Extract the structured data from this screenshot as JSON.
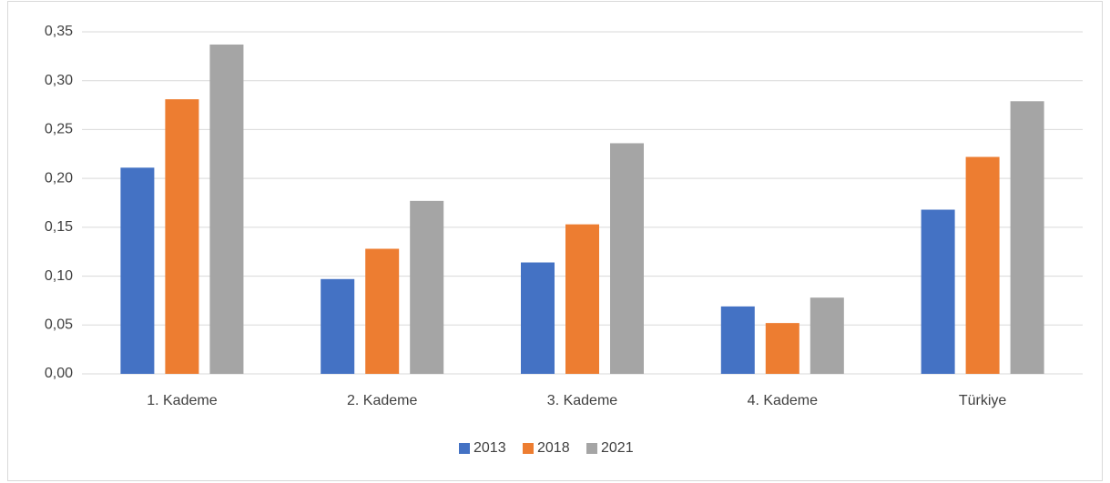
{
  "chart_data": {
    "type": "bar",
    "categories": [
      "1. Kademe",
      "2. Kademe",
      "3. Kademe",
      "4. Kademe",
      "Türkiye"
    ],
    "series": [
      {
        "name": "2013",
        "color": "#4472c4",
        "values": [
          0.211,
          0.097,
          0.114,
          0.069,
          0.168
        ]
      },
      {
        "name": "2018",
        "color": "#ed7d31",
        "values": [
          0.281,
          0.128,
          0.153,
          0.052,
          0.222
        ]
      },
      {
        "name": "2021",
        "color": "#a5a5a5",
        "values": [
          0.337,
          0.177,
          0.236,
          0.078,
          0.279
        ]
      }
    ],
    "ylim": [
      0,
      0.35
    ],
    "yticks": [
      {
        "value": 0,
        "label": "0,00"
      },
      {
        "value": 0.05,
        "label": "0,05"
      },
      {
        "value": 0.1,
        "label": "0,10"
      },
      {
        "value": 0.15,
        "label": "0,15"
      },
      {
        "value": 0.2,
        "label": "0,20"
      },
      {
        "value": 0.25,
        "label": "0,25"
      },
      {
        "value": 0.3,
        "label": "0,30"
      },
      {
        "value": 0.35,
        "label": "0,35"
      }
    ],
    "grid": true,
    "legend": "bottom"
  }
}
